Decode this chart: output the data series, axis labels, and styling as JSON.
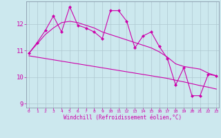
{
  "xlabel": "Windchill (Refroidissement éolien,°C)",
  "bg_color": "#cce8ee",
  "grid_color": "#aec8d0",
  "line_color": "#cc00aa",
  "x_hours": [
    0,
    1,
    2,
    3,
    4,
    5,
    6,
    7,
    8,
    9,
    10,
    11,
    12,
    13,
    14,
    15,
    16,
    17,
    18,
    19,
    20,
    21,
    22,
    23
  ],
  "wc_jagged": [
    10.9,
    11.3,
    11.75,
    12.3,
    11.7,
    12.65,
    11.95,
    11.85,
    11.7,
    11.45,
    12.5,
    12.5,
    12.1,
    11.1,
    11.55,
    11.7,
    11.15,
    10.7,
    9.7,
    10.35,
    9.3,
    9.3,
    10.1,
    10.05
  ],
  "wc_smooth_upper": [
    10.9,
    11.25,
    11.6,
    11.85,
    12.05,
    12.1,
    12.05,
    11.95,
    11.85,
    11.7,
    11.6,
    11.5,
    11.4,
    11.3,
    11.2,
    11.1,
    10.95,
    10.75,
    10.5,
    10.4,
    10.35,
    10.3,
    10.15,
    10.05
  ],
  "wc_lower": [
    10.8,
    10.75,
    10.7,
    10.65,
    10.6,
    10.55,
    10.5,
    10.45,
    10.4,
    10.35,
    10.3,
    10.25,
    10.2,
    10.15,
    10.1,
    10.05,
    10.0,
    9.95,
    9.88,
    9.82,
    9.75,
    9.68,
    9.62,
    9.55
  ],
  "ylim": [
    8.85,
    12.85
  ],
  "yticks": [
    9,
    10,
    11,
    12
  ],
  "xticks": [
    0,
    1,
    2,
    3,
    4,
    5,
    6,
    7,
    8,
    9,
    10,
    11,
    12,
    13,
    14,
    15,
    16,
    17,
    18,
    19,
    20,
    21,
    22,
    23
  ]
}
